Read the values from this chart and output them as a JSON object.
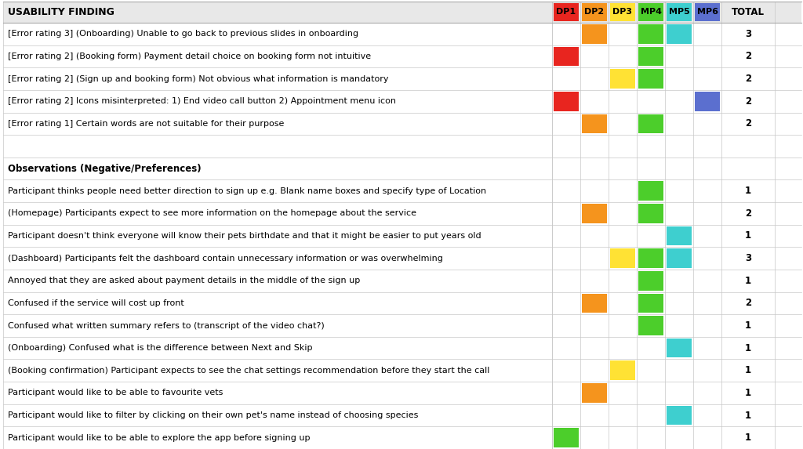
{
  "title": "USABILITY FINDING",
  "columns": [
    "DP1",
    "DP2",
    "DP3",
    "MP4",
    "MP5",
    "MP6",
    "TOTAL"
  ],
  "col_colors": [
    "#e8251f",
    "#f5941d",
    "#ffe234",
    "#4cce2b",
    "#3ecfcf",
    "#5b6fcf"
  ],
  "rows": [
    {
      "text": "[Error rating 3] (Onboarding) Unable to go back to previous slides in onboarding",
      "cells": [
        null,
        "#f5941d",
        null,
        "#4cce2b",
        "#3ecfcf",
        null
      ],
      "total": "3",
      "bold": false
    },
    {
      "text": "[Error rating 2] (Booking form) Payment detail choice on booking form not intuitive",
      "cells": [
        "#e8251f",
        null,
        null,
        "#4cce2b",
        null,
        null
      ],
      "total": "2",
      "bold": false
    },
    {
      "text": "[Error rating 2] (Sign up and booking form) Not obvious what information is mandatory",
      "cells": [
        null,
        null,
        "#ffe234",
        "#4cce2b",
        null,
        null
      ],
      "total": "2",
      "bold": false
    },
    {
      "text": "[Error rating 2] Icons misinterpreted: 1) End video call button 2) Appointment menu icon",
      "cells": [
        "#e8251f",
        null,
        null,
        null,
        null,
        "#5b6fcf"
      ],
      "total": "2",
      "bold": false
    },
    {
      "text": "[Error rating 1] Certain words are not suitable for their purpose",
      "cells": [
        null,
        "#f5941d",
        null,
        "#4cce2b",
        null,
        null
      ],
      "total": "2",
      "bold": false
    },
    {
      "text": "",
      "cells": [
        null,
        null,
        null,
        null,
        null,
        null
      ],
      "total": "",
      "bold": false
    },
    {
      "text": "Observations (Negative/Preferences)",
      "cells": [
        null,
        null,
        null,
        null,
        null,
        null
      ],
      "total": "",
      "bold": true
    },
    {
      "text": "Participant thinks people need better direction to sign up e.g. Blank name boxes and specify type of Location",
      "cells": [
        null,
        null,
        null,
        "#4cce2b",
        null,
        null
      ],
      "total": "1",
      "bold": false
    },
    {
      "text": "(Homepage) Participants expect to see more information on the homepage about the service",
      "cells": [
        null,
        "#f5941d",
        null,
        "#4cce2b",
        null,
        null
      ],
      "total": "2",
      "bold": false
    },
    {
      "text": "Participant doesn't think everyone will know their pets birthdate and that it might be easier to put years old",
      "cells": [
        null,
        null,
        null,
        null,
        "#3ecfcf",
        null
      ],
      "total": "1",
      "bold": false
    },
    {
      "text": "(Dashboard) Participants felt the dashboard contain unnecessary information or was overwhelming",
      "cells": [
        null,
        null,
        "#ffe234",
        "#4cce2b",
        "#3ecfcf",
        null
      ],
      "total": "3",
      "bold": false
    },
    {
      "text": "Annoyed that they are asked about payment details in the middle of the sign up",
      "cells": [
        null,
        null,
        null,
        "#4cce2b",
        null,
        null
      ],
      "total": "1",
      "bold": false
    },
    {
      "text": "Confused if the service will cost up front",
      "cells": [
        null,
        "#f5941d",
        null,
        "#4cce2b",
        null,
        null
      ],
      "total": "2",
      "bold": false
    },
    {
      "text": "Confused what written summary refers to (transcript of the video chat?)",
      "cells": [
        null,
        null,
        null,
        "#4cce2b",
        null,
        null
      ],
      "total": "1",
      "bold": false
    },
    {
      "text": "(Onboarding) Confused what is the difference between Next and Skip",
      "cells": [
        null,
        null,
        null,
        null,
        "#3ecfcf",
        null
      ],
      "total": "1",
      "bold": false
    },
    {
      "text": "(Booking confirmation) Participant expects to see the chat settings recommendation before they start the call",
      "cells": [
        null,
        null,
        "#ffe234",
        null,
        null,
        null
      ],
      "total": "1",
      "bold": false
    },
    {
      "text": "Participant would like to be able to favourite vets",
      "cells": [
        null,
        "#f5941d",
        null,
        null,
        null,
        null
      ],
      "total": "1",
      "bold": false
    },
    {
      "text": "Participant would like to filter by clicking on their own pet's name instead of choosing species",
      "cells": [
        null,
        null,
        null,
        null,
        "#3ecfcf",
        null
      ],
      "total": "1",
      "bold": false
    },
    {
      "text": "Participant would like to be able to explore the app before signing up",
      "cells": [
        "#4cce2b",
        null,
        null,
        null,
        null,
        null
      ],
      "total": "1",
      "bold": false
    }
  ],
  "bg_color": "#ffffff",
  "header_bg": "#e8e8e8",
  "grid_color": "#c8c8c8",
  "font_size": 8.0,
  "header_font_size": 9.0
}
